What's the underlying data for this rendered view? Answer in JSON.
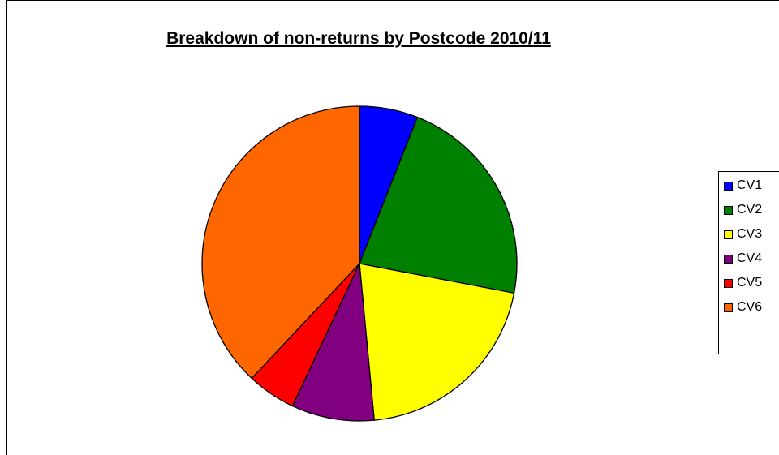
{
  "chart_data": {
    "type": "pie",
    "title": "Breakdown of non-returns by Postcode 2010/11",
    "categories": [
      "CV1",
      "CV2",
      "CV3",
      "CV4",
      "CV5",
      "CV6"
    ],
    "values": [
      6,
      22,
      20.5,
      8.5,
      5,
      38
    ],
    "colors": [
      "#0000ff",
      "#008000",
      "#ffff00",
      "#800080",
      "#ff0000",
      "#ff6600"
    ],
    "legend_position": "right",
    "start_angle": "top",
    "direction": "clockwise"
  }
}
